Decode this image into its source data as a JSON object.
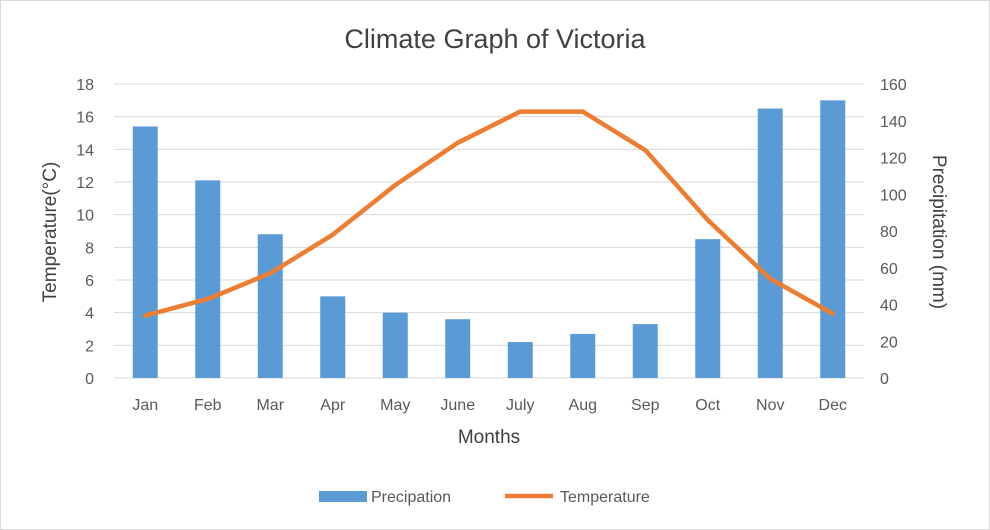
{
  "chart_data": {
    "type": "bar",
    "title": "Climate Graph of Victoria",
    "xlabel": "Months",
    "ylabel_left": "Temperature(°C)",
    "ylabel_right": "Precipitation (mm)",
    "categories": [
      "Jan",
      "Feb",
      "Mar",
      "Apr",
      "May",
      "June",
      "July",
      "Aug",
      "Sep",
      "Oct",
      "Nov",
      "Dec"
    ],
    "y_left_ticks": [
      "0",
      "2",
      "4",
      "6",
      "8",
      "10",
      "12",
      "14",
      "16",
      "18"
    ],
    "y_right_ticks": [
      "0",
      "20",
      "40",
      "60",
      "80",
      "100",
      "120",
      "140",
      "160"
    ],
    "ylim_left": [
      0,
      18
    ],
    "ylim_right": [
      0,
      160
    ],
    "grid": true,
    "legend_position": "bottom",
    "series": [
      {
        "name": "Precipation",
        "type": "bar",
        "axis": "left",
        "color": "#5b9bd5",
        "values": [
          15.4,
          12.1,
          8.8,
          5.0,
          4.0,
          3.6,
          2.2,
          2.7,
          3.3,
          8.5,
          16.5,
          17.0
        ]
      },
      {
        "name": "Temperature",
        "type": "line",
        "axis": "right",
        "color": "#ed7d31",
        "values": [
          34,
          43,
          57,
          78,
          105,
          128,
          145,
          145,
          124,
          86,
          54,
          35
        ]
      }
    ]
  }
}
